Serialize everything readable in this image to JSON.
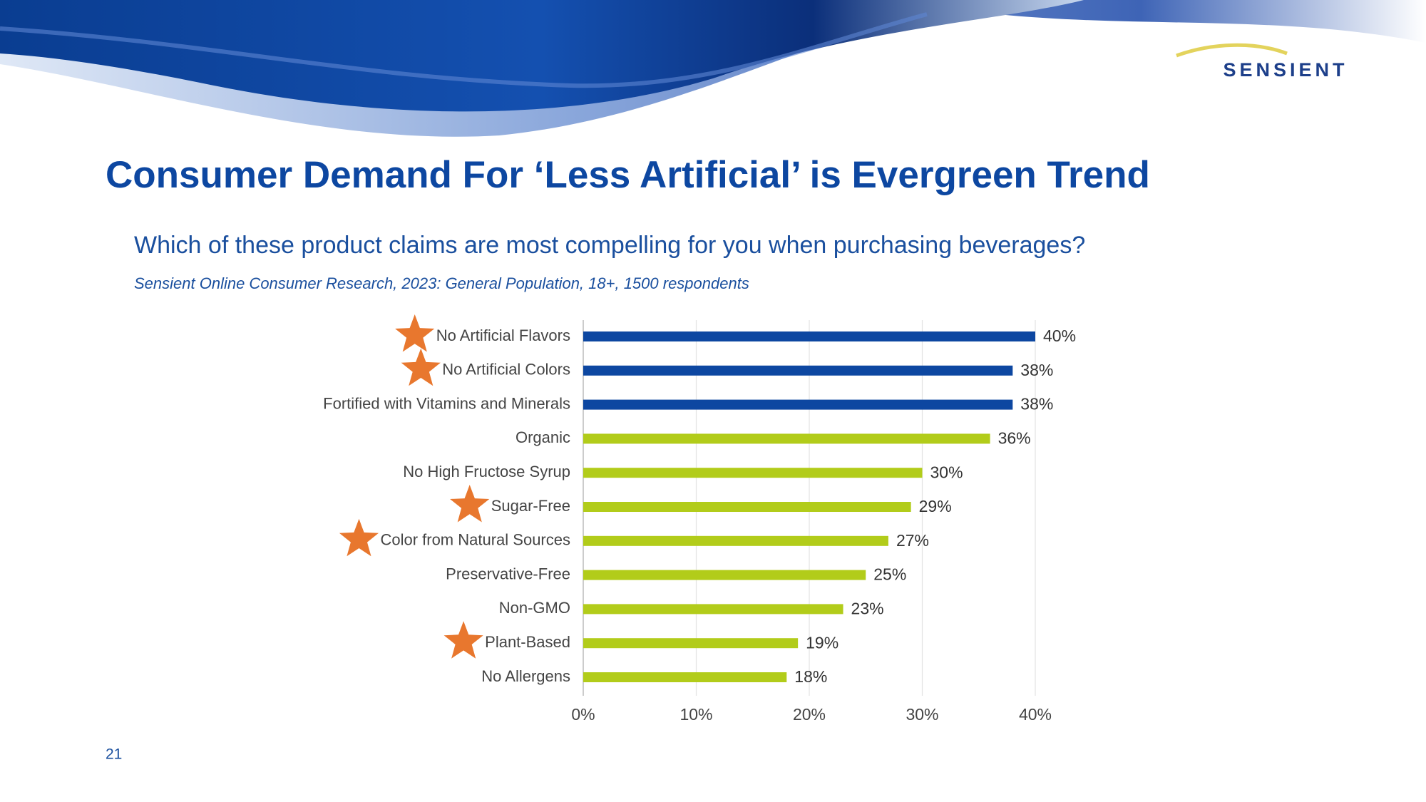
{
  "logo": "SENSIENT",
  "page_number": "21",
  "chart_data": {
    "type": "hbar",
    "title": "Consumer Demand For ‘Less Artificial’ is Evergreen Trend",
    "subtitle": "Which of these product claims are most compelling for you when purchasing beverages?",
    "note": "Sensient Online Consumer Research, 2023: General Population, 18+, 1500 respondents",
    "categories": [
      "No Artificial Flavors",
      "No Artificial Colors",
      "Fortified with Vitamins and Minerals",
      "Organic",
      "No High Fructose Syrup",
      "Sugar-Free",
      "Color from Natural Sources",
      "Preservative-Free",
      "Non-GMO",
      "Plant-Based",
      "No Allergens"
    ],
    "values": [
      40,
      38,
      38,
      36,
      30,
      29,
      27,
      25,
      23,
      19,
      18
    ],
    "value_labels": [
      "40%",
      "38%",
      "38%",
      "36%",
      "30%",
      "29%",
      "27%",
      "25%",
      "23%",
      "19%",
      "18%"
    ],
    "colors": [
      "#0d47a1",
      "#0d47a1",
      "#0d47a1",
      "#b2cc1a",
      "#b2cc1a",
      "#b2cc1a",
      "#b2cc1a",
      "#b2cc1a",
      "#b2cc1a",
      "#b2cc1a",
      "#b2cc1a"
    ],
    "highlighted": [
      true,
      true,
      false,
      false,
      false,
      true,
      true,
      false,
      false,
      true,
      false
    ],
    "xlim": [
      0,
      40
    ],
    "xticks": [
      {
        "value": 0,
        "label": "0%"
      },
      {
        "value": 10,
        "label": "10%"
      },
      {
        "value": 20,
        "label": "20%"
      },
      {
        "value": 30,
        "label": "30%"
      },
      {
        "value": 40,
        "label": "40%"
      }
    ],
    "grid": true
  }
}
